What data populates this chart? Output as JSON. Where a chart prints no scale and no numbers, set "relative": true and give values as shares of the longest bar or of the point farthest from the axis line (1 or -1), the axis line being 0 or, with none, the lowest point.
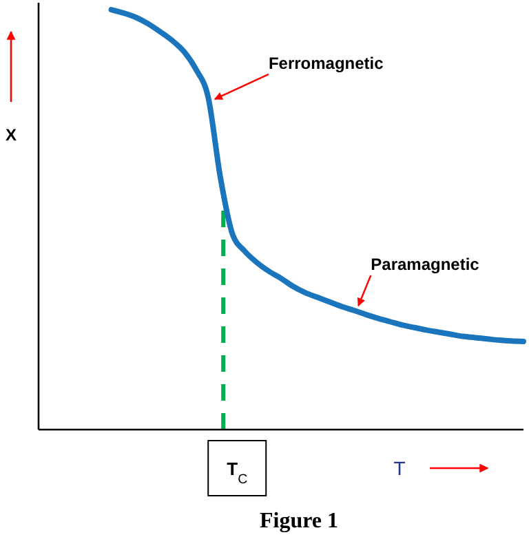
{
  "chart_data": {
    "type": "line",
    "relative": true,
    "xlabel": "T",
    "ylabel": "X",
    "categories": [
      null,
      null,
      null,
      null,
      null,
      null,
      null,
      null,
      null,
      null,
      null,
      null,
      null,
      null,
      null,
      null,
      null,
      null,
      null,
      null,
      null,
      null,
      null,
      null,
      null,
      null,
      null,
      null,
      null,
      null,
      null,
      null,
      null,
      null,
      null,
      null,
      null,
      null,
      null,
      null,
      null
    ],
    "series": [
      {
        "color": "#1b75bc",
        "values": [
          null,
          null,
          null,
          null,
          null,
          null,
          1,
          0.992,
          0.982,
          0.967,
          0.948,
          0.927,
          0.9,
          0.857,
          0.79,
          0.6,
          0.465,
          0.425,
          0.398,
          0.377,
          0.36,
          0.341,
          0.326,
          0.315,
          0.304,
          0.293,
          0.284,
          0.274,
          0.265,
          0.257,
          0.249,
          0.243,
          0.237,
          0.232,
          0.227,
          0.222,
          0.219,
          0.216,
          0.213,
          0.211,
          0.21
        ]
      }
    ],
    "annotations": [
      "Ferromagnetic",
      "Paramagnetic",
      "T$_{C}$",
      "Figure 1"
    ],
    "grid": false,
    "legend": false,
    "marker": "none",
    "line_style": "solid"
  }
}
